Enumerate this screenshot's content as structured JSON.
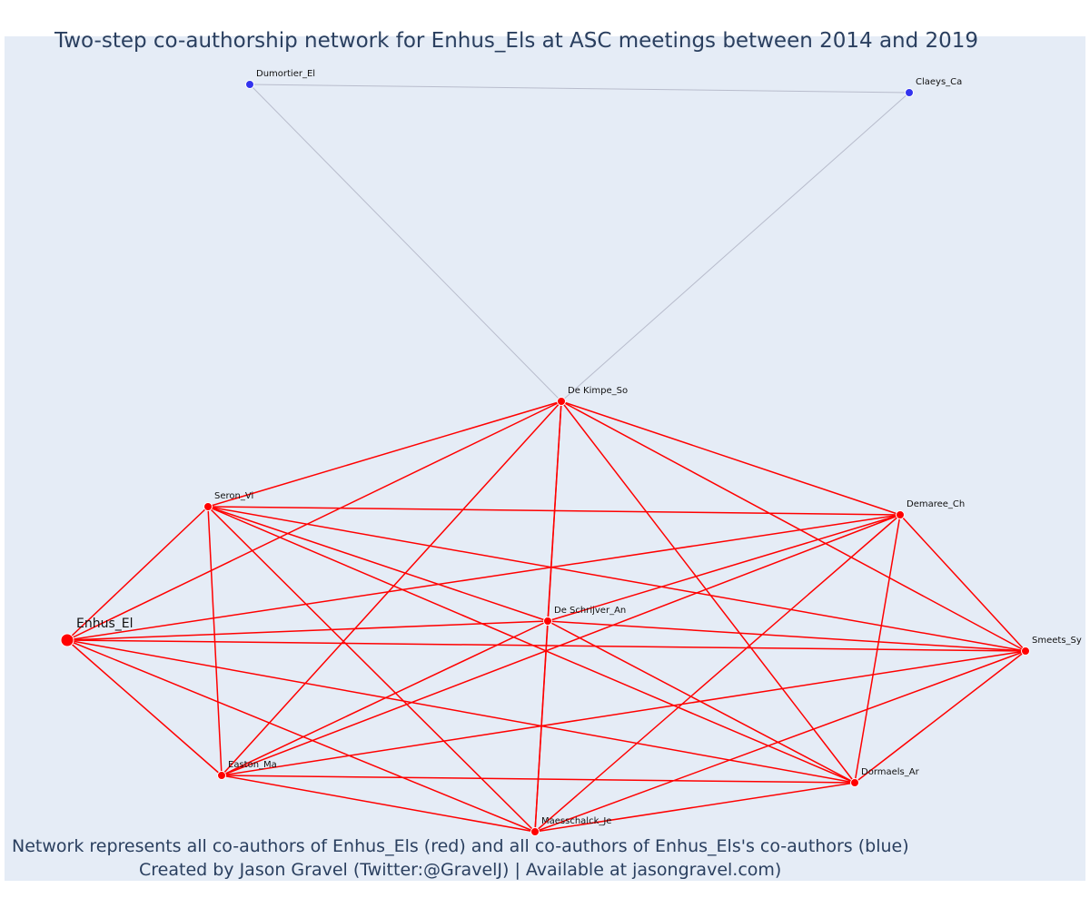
{
  "title": "Two-step co-authorship network for Enhus_Els at ASC meetings between 2014 and 2019",
  "caption": {
    "line1": "Network represents all co-authors of Enhus_Els (red) and all co-authors of Enhus_Els's co-authors (blue)",
    "line2": "Created by Jason Gravel (Twitter:@GravelJ) | Available at jasongravel.com)"
  },
  "colors": {
    "background": "#e5ecf6",
    "red_node": "#ff0000",
    "blue_node": "#3333ee",
    "red_edge": "#ff0000",
    "blue_edge": "#b8bccc"
  },
  "chart_data": {
    "type": "network",
    "focal": "Enhus_El",
    "nodes": [
      {
        "id": "Enhus_El",
        "label": "Enhus_El",
        "group": "focal"
      },
      {
        "id": "Dumortier_El",
        "label": "Dumortier_El",
        "group": "second-step"
      },
      {
        "id": "Claeys_Ca",
        "label": "Claeys_Ca",
        "group": "second-step"
      },
      {
        "id": "De Kimpe_So",
        "label": "De Kimpe_So",
        "group": "co-author"
      },
      {
        "id": "Seron_Vi",
        "label": "Seron_Vi",
        "group": "co-author"
      },
      {
        "id": "Demaree_Ch",
        "label": "Demaree_Ch",
        "group": "co-author"
      },
      {
        "id": "De Schrijver_An",
        "label": "De Schrijver_An",
        "group": "co-author"
      },
      {
        "id": "Smeets_Sy",
        "label": "Smeets_Sy",
        "group": "co-author"
      },
      {
        "id": "Easton_Ma",
        "label": "Easton_Ma",
        "group": "co-author"
      },
      {
        "id": "Dormaels_Ar",
        "label": "Dormaels_Ar",
        "group": "co-author"
      },
      {
        "id": "Maesschalck_Je",
        "label": "Maesschalck_Je",
        "group": "co-author"
      }
    ],
    "edges": [
      [
        "Dumortier_El",
        "Claeys_Ca"
      ],
      [
        "Dumortier_El",
        "De Kimpe_So"
      ],
      [
        "Claeys_Ca",
        "De Kimpe_So"
      ],
      [
        "Enhus_El",
        "De Kimpe_So"
      ],
      [
        "Enhus_El",
        "Seron_Vi"
      ],
      [
        "Enhus_El",
        "Demaree_Ch"
      ],
      [
        "Enhus_El",
        "De Schrijver_An"
      ],
      [
        "Enhus_El",
        "Smeets_Sy"
      ],
      [
        "Enhus_El",
        "Easton_Ma"
      ],
      [
        "Enhus_El",
        "Dormaels_Ar"
      ],
      [
        "Enhus_El",
        "Maesschalck_Je"
      ],
      [
        "De Kimpe_So",
        "Seron_Vi"
      ],
      [
        "De Kimpe_So",
        "Demaree_Ch"
      ],
      [
        "De Kimpe_So",
        "De Schrijver_An"
      ],
      [
        "De Kimpe_So",
        "Smeets_Sy"
      ],
      [
        "De Kimpe_So",
        "Easton_Ma"
      ],
      [
        "De Kimpe_So",
        "Dormaels_Ar"
      ],
      [
        "De Kimpe_So",
        "Maesschalck_Je"
      ],
      [
        "Seron_Vi",
        "Demaree_Ch"
      ],
      [
        "Seron_Vi",
        "De Schrijver_An"
      ],
      [
        "Seron_Vi",
        "Smeets_Sy"
      ],
      [
        "Seron_Vi",
        "Easton_Ma"
      ],
      [
        "Seron_Vi",
        "Dormaels_Ar"
      ],
      [
        "Seron_Vi",
        "Maesschalck_Je"
      ],
      [
        "Demaree_Ch",
        "De Schrijver_An"
      ],
      [
        "Demaree_Ch",
        "Smeets_Sy"
      ],
      [
        "Demaree_Ch",
        "Easton_Ma"
      ],
      [
        "Demaree_Ch",
        "Dormaels_Ar"
      ],
      [
        "Demaree_Ch",
        "Maesschalck_Je"
      ],
      [
        "De Schrijver_An",
        "Smeets_Sy"
      ],
      [
        "De Schrijver_An",
        "Easton_Ma"
      ],
      [
        "De Schrijver_An",
        "Dormaels_Ar"
      ],
      [
        "De Schrijver_An",
        "Maesschalck_Je"
      ],
      [
        "Smeets_Sy",
        "Easton_Ma"
      ],
      [
        "Smeets_Sy",
        "Dormaels_Ar"
      ],
      [
        "Smeets_Sy",
        "Maesschalck_Je"
      ],
      [
        "Easton_Ma",
        "Dormaels_Ar"
      ],
      [
        "Easton_Ma",
        "Maesschalck_Je"
      ],
      [
        "Dormaels_Ar",
        "Maesschalck_Je"
      ]
    ]
  }
}
